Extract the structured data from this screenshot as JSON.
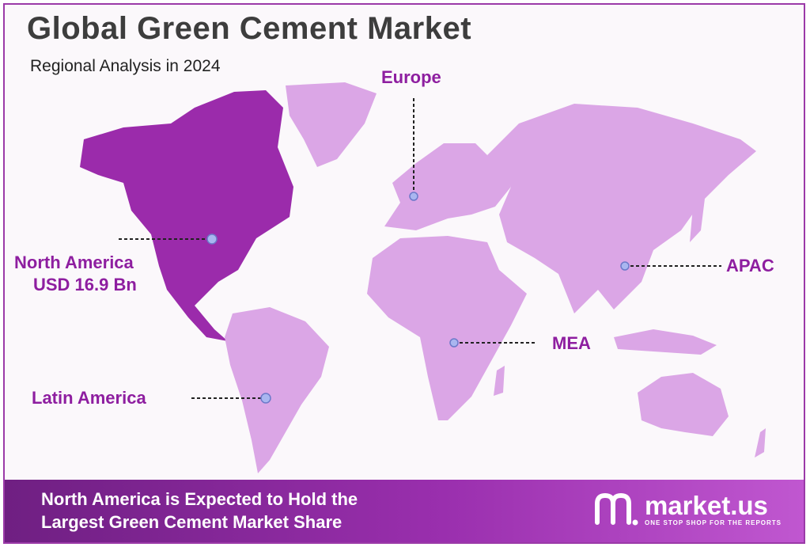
{
  "title": "Global Green Cement Market",
  "subtitle": "Regional Analysis in 2024",
  "regions": {
    "north_america": {
      "name": "North America",
      "value": "USD 16.9 Bn"
    },
    "europe": {
      "name": "Europe"
    },
    "apac": {
      "name": "APAC"
    },
    "mea": {
      "name": "MEA"
    },
    "latin_america": {
      "name": "Latin America"
    }
  },
  "colors": {
    "highlight": "#9b2bab",
    "land": "#dba6e6",
    "label": "#8e1ea0",
    "marker": "#a9b6f0"
  },
  "footer": {
    "line1": "North America is Expected to Hold the",
    "line2": "Largest Green Cement Market Share"
  },
  "logo": {
    "name": "market.us",
    "tagline": "ONE STOP SHOP FOR THE REPORTS"
  }
}
